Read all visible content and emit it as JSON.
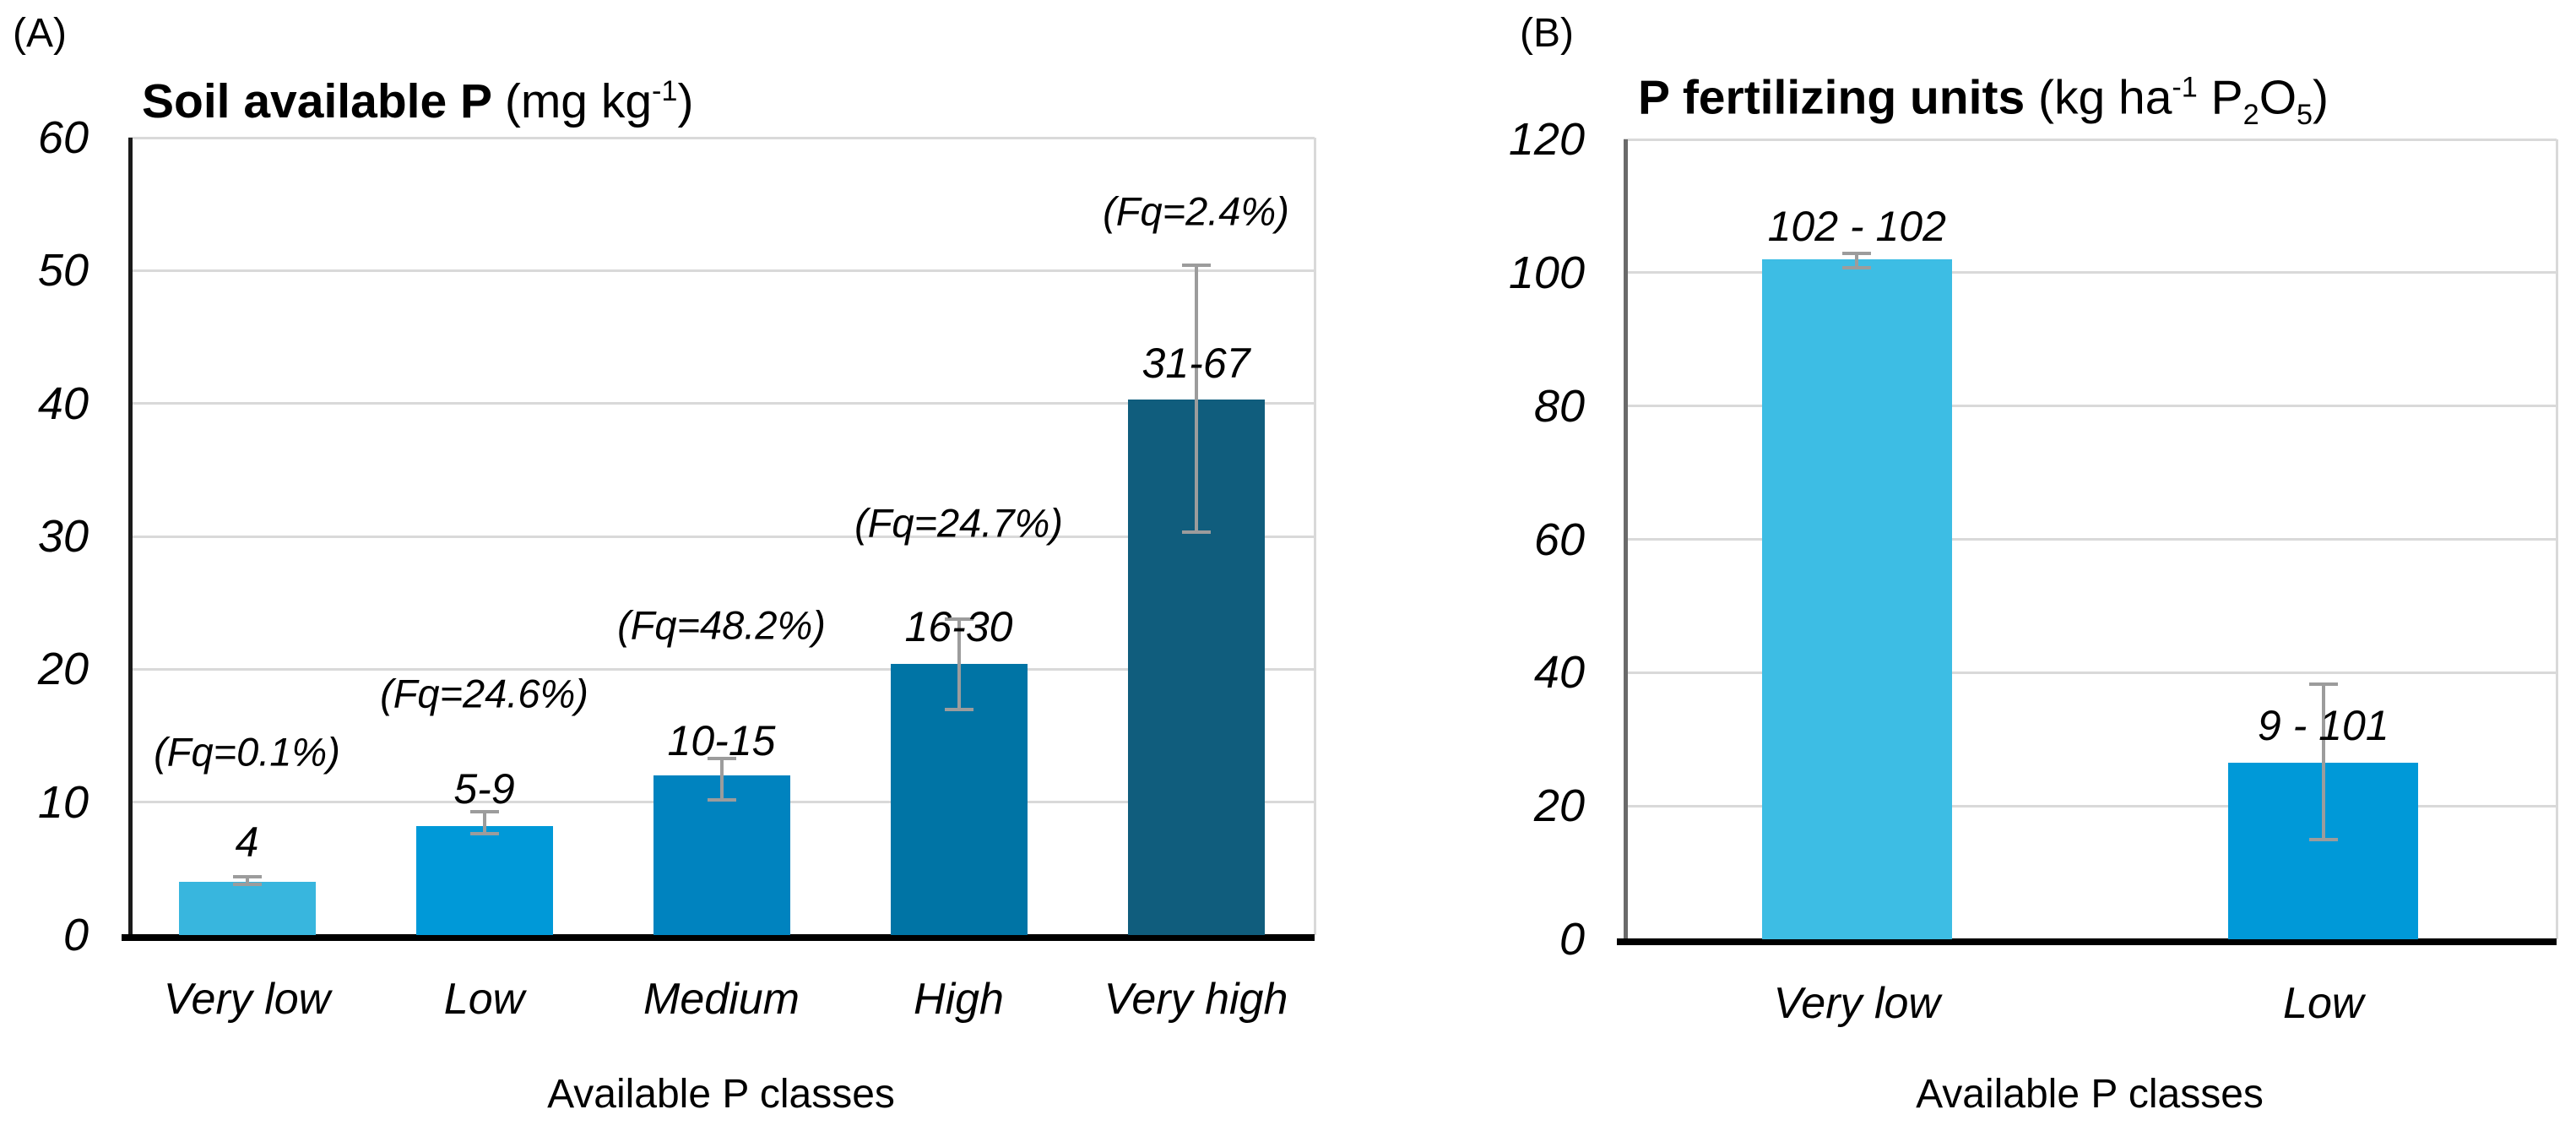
{
  "figure_caption_letters": [
    "(A)",
    "(B)"
  ],
  "colors": {
    "gridline": "#D9D9D9",
    "error_bar": "#9C9C9C",
    "axis_black": "#1A1A1A",
    "axis_gray": "#6A6A6A",
    "background": "#FFFFFF"
  },
  "chart_data": [
    {
      "type": "bar",
      "panel_label": "(A)",
      "title": "Soil available P (mg kg-1)",
      "title_parts": [
        {
          "text": "Soil available P ",
          "bold": true
        },
        {
          "text": "(mg kg",
          "bold": false
        },
        {
          "text": "-1",
          "bold": false,
          "sup": true
        },
        {
          "text": ")",
          "bold": false
        }
      ],
      "categories": [
        "Very low",
        "Low",
        "Medium",
        "High",
        "Very high"
      ],
      "values": [
        4,
        8.2,
        12,
        20.4,
        40.3
      ],
      "error_low": [
        3.8,
        7.6,
        10.2,
        17,
        30.3
      ],
      "error_high": [
        4.4,
        9.3,
        13.3,
        23.8,
        50.4
      ],
      "bar_labels": [
        "4",
        "5-9",
        "10-15",
        "16-30",
        "31-67"
      ],
      "bar_label_y": [
        7.0,
        11.0,
        14.6,
        23.2,
        43.0
      ],
      "fq_labels": [
        "(Fq=0.1%)",
        "(Fq=24.6%)",
        "(Fq=48.2%)",
        "(Fq=24.7%)",
        "(Fq=2.4%)"
      ],
      "fq_label_y": [
        13.8,
        18.2,
        23.3,
        31.0,
        54.5
      ],
      "bar_colors": [
        "#38B6DE",
        "#0099D8",
        "#0083BF",
        "#0074A5",
        "#105D7D"
      ],
      "yticks": [
        0,
        10,
        20,
        30,
        40,
        50,
        60
      ],
      "ylim": [
        0,
        60
      ],
      "xlabel": "Available P classes",
      "ylabel": "",
      "grid": true,
      "legend": "none"
    },
    {
      "type": "bar",
      "panel_label": "(B)",
      "title": "P fertilizing units (kg ha-1 P2O5)",
      "title_parts": [
        {
          "text": "P fertilizing units ",
          "bold": true
        },
        {
          "text": "(kg ha",
          "bold": false
        },
        {
          "text": "-1",
          "bold": false,
          "sup": true
        },
        {
          "text": " P",
          "bold": false
        },
        {
          "text": "2",
          "bold": false,
          "sub": true
        },
        {
          "text": "O",
          "bold": false
        },
        {
          "text": "5",
          "bold": false,
          "sub": true
        },
        {
          "text": ")",
          "bold": false
        }
      ],
      "categories": [
        "Very low",
        "Low"
      ],
      "values": [
        102,
        26.5
      ],
      "error_low": [
        100.8,
        15
      ],
      "error_high": [
        102.9,
        38.3
      ],
      "bar_labels": [
        "102 - 102",
        "9 - 101"
      ],
      "bar_label_y": [
        107,
        32
      ],
      "fq_labels": [
        "",
        ""
      ],
      "fq_label_y": [
        0,
        0
      ],
      "bar_colors": [
        "#3DBDE4",
        "#0099D8"
      ],
      "yticks": [
        0,
        20,
        40,
        60,
        80,
        100,
        120
      ],
      "ylim": [
        0,
        120
      ],
      "xlabel": "Available P classes",
      "ylabel": "",
      "grid": true,
      "legend": "none"
    }
  ]
}
